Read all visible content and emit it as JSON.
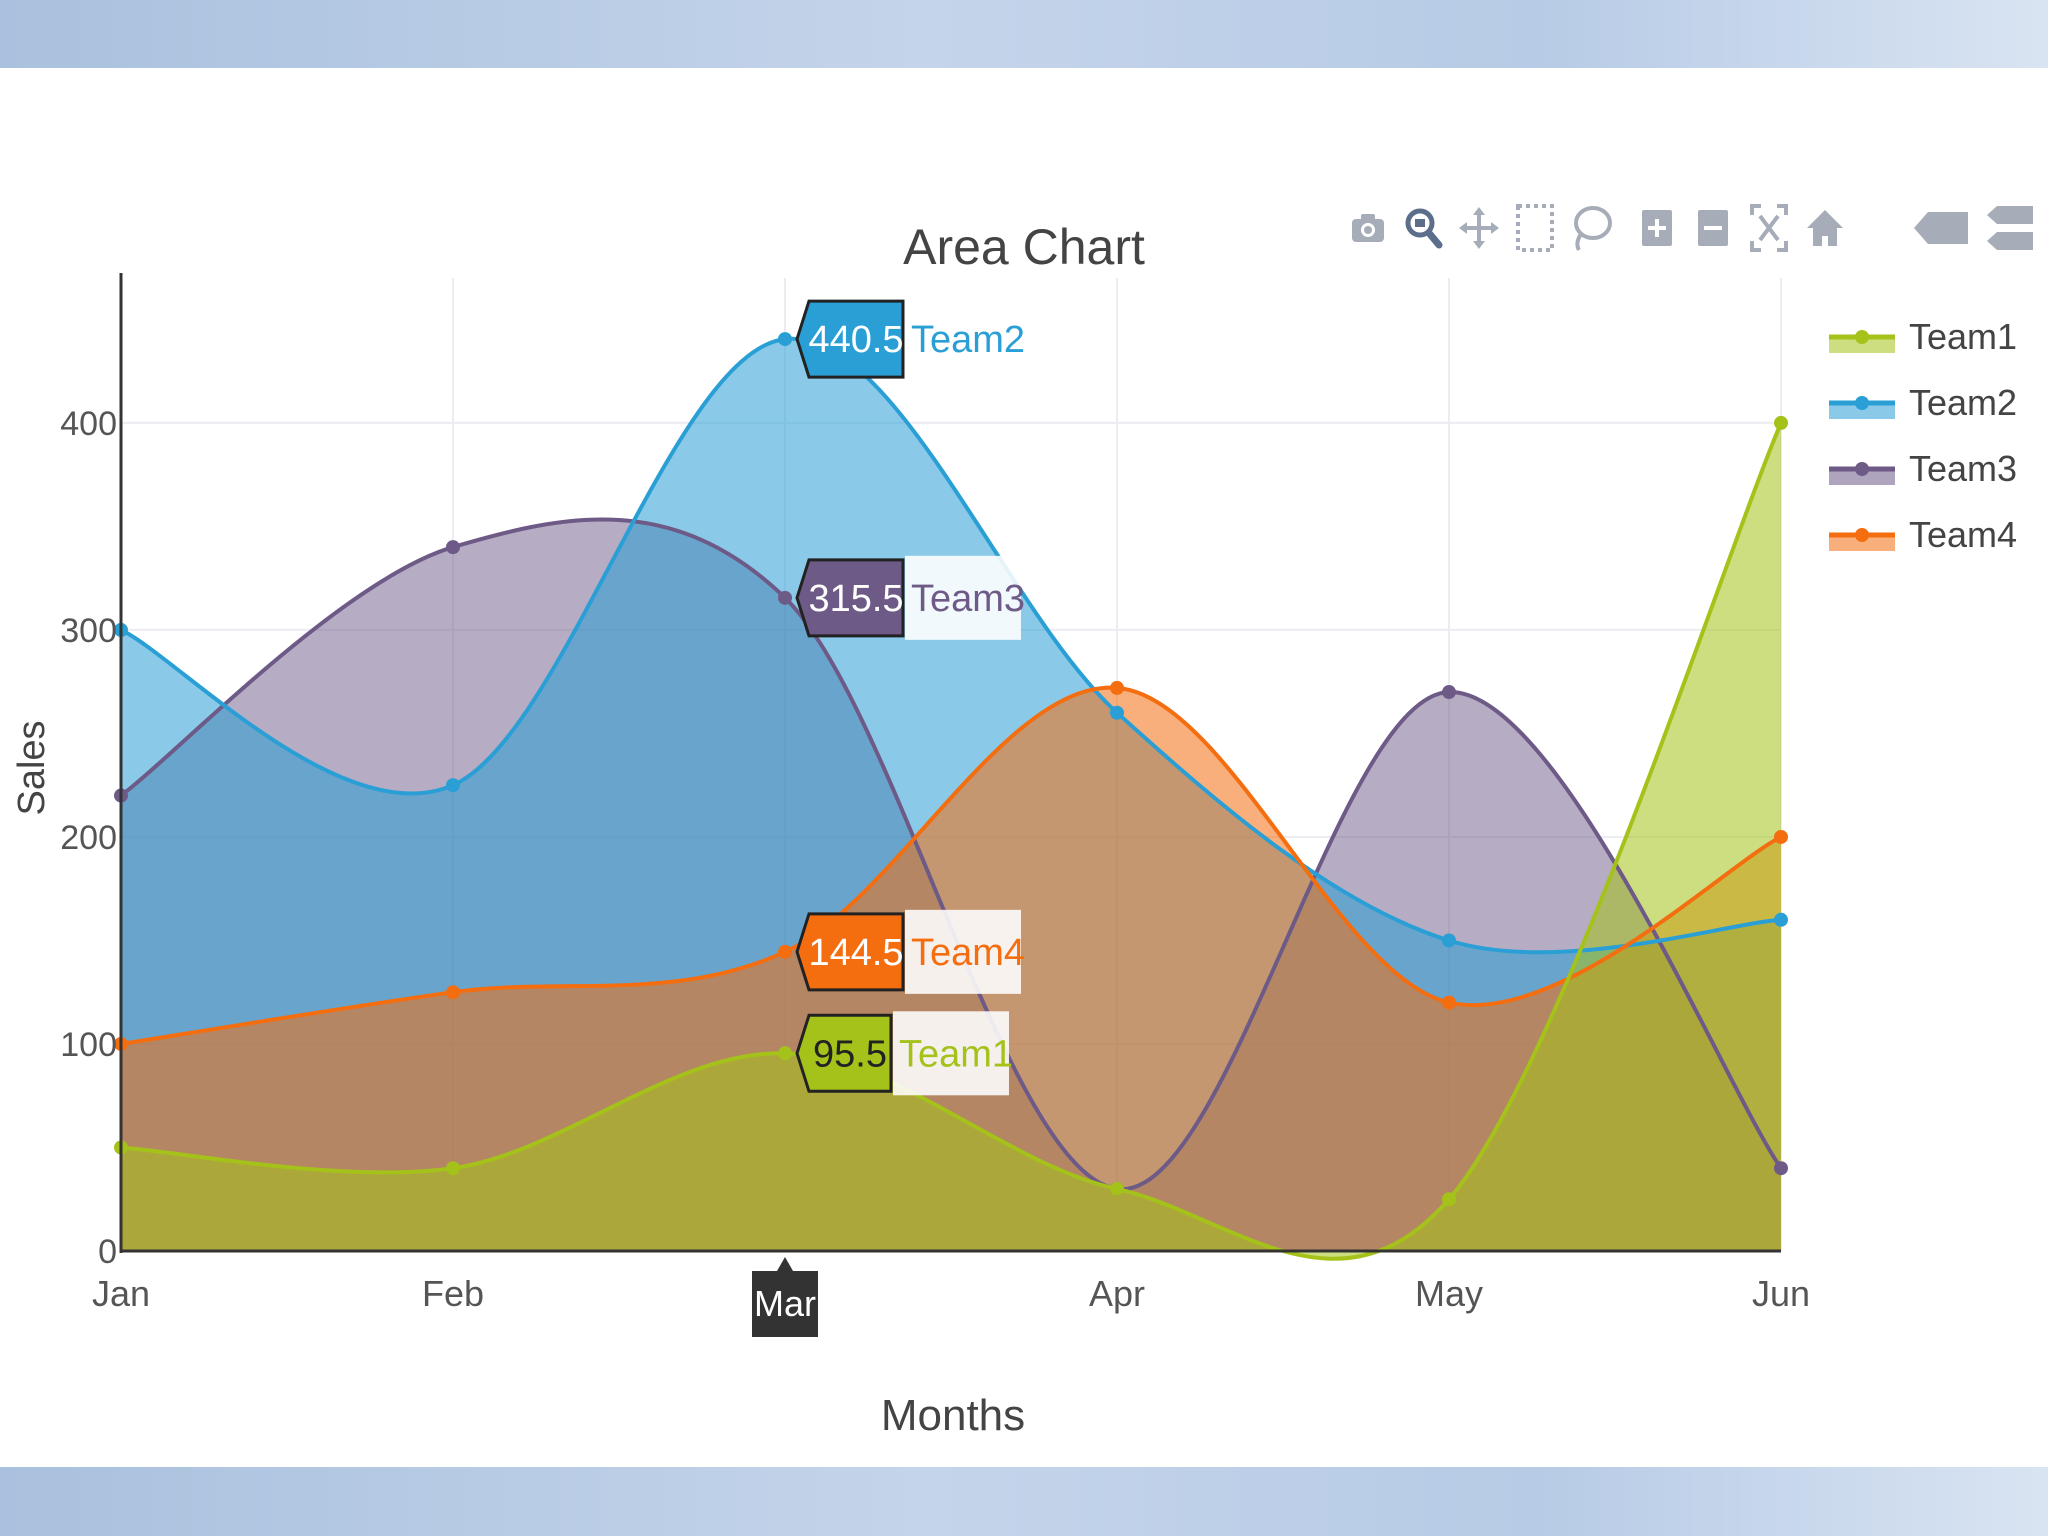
{
  "chart_data": {
    "type": "area",
    "title": "Area Chart",
    "xlabel": "Months",
    "ylabel": "Sales",
    "categories": [
      "Jan",
      "Feb",
      "Mar",
      "Apr",
      "May",
      "Jun"
    ],
    "yticks": [
      "0",
      "100",
      "200",
      "300",
      "400"
    ],
    "ylim": [
      0,
      470
    ],
    "series": [
      {
        "name": "Team1",
        "color": "#a4c21a",
        "values": [
          50,
          40,
          95.5,
          30,
          25,
          400
        ]
      },
      {
        "name": "Team2",
        "color": "#2a9fd6",
        "values": [
          300,
          225,
          440.5,
          260,
          150,
          160
        ]
      },
      {
        "name": "Team3",
        "color": "#6e5a87",
        "values": [
          220,
          340,
          315.5,
          30,
          270,
          40
        ]
      },
      {
        "name": "Team4",
        "color": "#f46d0f",
        "values": [
          100,
          125,
          144.5,
          272,
          120,
          200
        ]
      }
    ],
    "hover": {
      "category": "Mar",
      "labels": [
        {
          "series": "Team2",
          "value": "440.5",
          "name": "Team2"
        },
        {
          "series": "Team3",
          "value": "315.5",
          "name": "Team3"
        },
        {
          "series": "Team4",
          "value": "144.5",
          "name": "Team4"
        },
        {
          "series": "Team1",
          "value": "95.5",
          "name": "Team1"
        }
      ]
    },
    "grid": true,
    "legend": "right",
    "smoothing": "spline"
  },
  "toolbar": {
    "buttons": [
      {
        "name": "camera-icon"
      },
      {
        "name": "zoom-icon"
      },
      {
        "name": "pan-icon"
      },
      {
        "name": "box-select-icon"
      },
      {
        "name": "lasso-icon"
      },
      {
        "name": "zoom-in-icon"
      },
      {
        "name": "zoom-out-icon"
      },
      {
        "name": "autoscale-icon"
      },
      {
        "name": "home-icon"
      },
      {
        "name": "spike-lines-icon"
      },
      {
        "name": "compare-hover-icon"
      }
    ]
  }
}
